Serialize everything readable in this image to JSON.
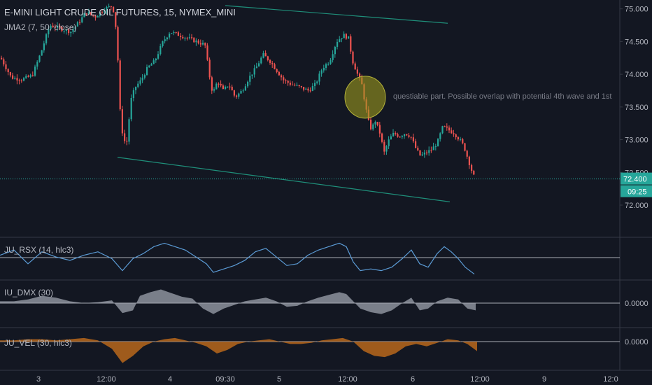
{
  "chart_data": {
    "type": "candlestick",
    "title": "E-MINI LIGHT CRUDE OIL FUTURES, 15, NYMEX_MINI",
    "overlay_label": "JMA2 (7, 50, close)",
    "y_ticks": [
      "75.000",
      "74.500",
      "74.000",
      "73.500",
      "73.000",
      "72.500",
      "72.000"
    ],
    "ylim": [
      71.85,
      75.05
    ],
    "last_price": "72.400",
    "last_price_value": 72.4,
    "countdown": "09:25",
    "x_ticks": [
      "3",
      "12:00",
      "4",
      "09:30",
      "5",
      "12:00",
      "6",
      "12:00",
      "9",
      "12:0"
    ],
    "close_path": [
      [
        0,
        74.25
      ],
      [
        15,
        73.95
      ],
      [
        30,
        73.92
      ],
      [
        45,
        73.98
      ],
      [
        58,
        74.35
      ],
      [
        70,
        74.75
      ],
      [
        85,
        74.7
      ],
      [
        100,
        74.65
      ],
      [
        112,
        74.8
      ],
      [
        122,
        74.95
      ],
      [
        135,
        74.88
      ],
      [
        148,
        75.0
      ],
      [
        160,
        75.05
      ],
      [
        166,
        74.6
      ],
      [
        170,
        73.5
      ],
      [
        175,
        73.0
      ],
      [
        180,
        72.95
      ],
      [
        186,
        73.6
      ],
      [
        192,
        73.8
      ],
      [
        200,
        73.9
      ],
      [
        210,
        74.1
      ],
      [
        220,
        74.2
      ],
      [
        232,
        74.5
      ],
      [
        242,
        74.65
      ],
      [
        255,
        74.6
      ],
      [
        268,
        74.55
      ],
      [
        280,
        74.5
      ],
      [
        292,
        74.45
      ],
      [
        298,
        74.0
      ],
      [
        303,
        73.7
      ],
      [
        310,
        73.9
      ],
      [
        318,
        73.75
      ],
      [
        326,
        73.85
      ],
      [
        335,
        73.65
      ],
      [
        345,
        73.75
      ],
      [
        355,
        73.95
      ],
      [
        365,
        74.1
      ],
      [
        375,
        74.3
      ],
      [
        385,
        74.2
      ],
      [
        395,
        74.05
      ],
      [
        405,
        73.9
      ],
      [
        415,
        73.85
      ],
      [
        428,
        73.8
      ],
      [
        440,
        73.75
      ],
      [
        450,
        73.85
      ],
      [
        460,
        74.1
      ],
      [
        470,
        74.2
      ],
      [
        480,
        74.5
      ],
      [
        490,
        74.6
      ],
      [
        497,
        74.55
      ],
      [
        503,
        74.2
      ],
      [
        510,
        74.0
      ],
      [
        516,
        73.85
      ],
      [
        520,
        73.6
      ],
      [
        525,
        73.3
      ],
      [
        530,
        73.15
      ],
      [
        535,
        73.3
      ],
      [
        542,
        73.1
      ],
      [
        548,
        72.8
      ],
      [
        555,
        73.0
      ],
      [
        562,
        73.1
      ],
      [
        570,
        73.05
      ],
      [
        578,
        73.1
      ],
      [
        586,
        73.05
      ],
      [
        594,
        72.85
      ],
      [
        600,
        72.75
      ],
      [
        608,
        72.8
      ],
      [
        616,
        72.85
      ],
      [
        624,
        72.95
      ],
      [
        632,
        73.2
      ],
      [
        640,
        73.15
      ],
      [
        648,
        73.1
      ],
      [
        656,
        73.0
      ],
      [
        662,
        72.9
      ],
      [
        668,
        72.7
      ],
      [
        674,
        72.5
      ],
      [
        678,
        72.4
      ]
    ],
    "trend_lines": [
      {
        "x1": 322,
        "y1": 75.05,
        "x2": 640,
        "y2": 74.78
      },
      {
        "x1": 168,
        "y1": 72.73,
        "x2": 643,
        "y2": 72.05
      }
    ],
    "annotation": "questiable part. Possible overlap with potential 4th wave and 1st",
    "highlight_circle": {
      "x": 522,
      "price": 73.65
    },
    "panels": [
      {
        "label": "JU_RSX (14, hlc3)",
        "levels": [],
        "y_tick": "",
        "series": [
          [
            0,
            0.6
          ],
          [
            20,
            0.75
          ],
          [
            40,
            0.35
          ],
          [
            60,
            0.7
          ],
          [
            80,
            0.55
          ],
          [
            100,
            0.45
          ],
          [
            120,
            0.6
          ],
          [
            140,
            0.7
          ],
          [
            160,
            0.5
          ],
          [
            175,
            0.15
          ],
          [
            190,
            0.5
          ],
          [
            205,
            0.65
          ],
          [
            220,
            0.85
          ],
          [
            235,
            0.95
          ],
          [
            250,
            0.85
          ],
          [
            265,
            0.75
          ],
          [
            280,
            0.55
          ],
          [
            295,
            0.35
          ],
          [
            305,
            0.1
          ],
          [
            320,
            0.2
          ],
          [
            335,
            0.3
          ],
          [
            350,
            0.45
          ],
          [
            365,
            0.7
          ],
          [
            380,
            0.8
          ],
          [
            395,
            0.55
          ],
          [
            410,
            0.3
          ],
          [
            425,
            0.35
          ],
          [
            440,
            0.6
          ],
          [
            455,
            0.75
          ],
          [
            470,
            0.85
          ],
          [
            485,
            0.95
          ],
          [
            495,
            0.85
          ],
          [
            505,
            0.4
          ],
          [
            515,
            0.15
          ],
          [
            530,
            0.2
          ],
          [
            545,
            0.15
          ],
          [
            560,
            0.25
          ],
          [
            575,
            0.5
          ],
          [
            588,
            0.75
          ],
          [
            600,
            0.35
          ],
          [
            612,
            0.25
          ],
          [
            625,
            0.65
          ],
          [
            635,
            0.85
          ],
          [
            645,
            0.7
          ],
          [
            655,
            0.5
          ],
          [
            665,
            0.25
          ],
          [
            678,
            0.05
          ]
        ]
      },
      {
        "label": "IU_DMX (30)",
        "levels": [],
        "y_tick": "0.0000",
        "series": [
          [
            0,
            0.1
          ],
          [
            20,
            0.1
          ],
          [
            40,
            0.2
          ],
          [
            60,
            0.4
          ],
          [
            80,
            0.3
          ],
          [
            100,
            0.1
          ],
          [
            120,
            0.0
          ],
          [
            140,
            0.05
          ],
          [
            160,
            0.15
          ],
          [
            175,
            -0.55
          ],
          [
            190,
            -0.4
          ],
          [
            200,
            0.4
          ],
          [
            215,
            0.6
          ],
          [
            230,
            0.75
          ],
          [
            245,
            0.55
          ],
          [
            260,
            0.35
          ],
          [
            275,
            0.25
          ],
          [
            290,
            -0.3
          ],
          [
            305,
            -0.6
          ],
          [
            320,
            -0.3
          ],
          [
            335,
            -0.1
          ],
          [
            350,
            0.1
          ],
          [
            365,
            0.2
          ],
          [
            380,
            0.3
          ],
          [
            395,
            0.1
          ],
          [
            410,
            -0.2
          ],
          [
            425,
            -0.15
          ],
          [
            440,
            0.1
          ],
          [
            455,
            0.3
          ],
          [
            470,
            0.45
          ],
          [
            485,
            0.6
          ],
          [
            495,
            0.5
          ],
          [
            505,
            0.1
          ],
          [
            515,
            -0.3
          ],
          [
            530,
            -0.5
          ],
          [
            545,
            -0.6
          ],
          [
            560,
            -0.4
          ],
          [
            575,
            0.0
          ],
          [
            588,
            0.3
          ],
          [
            600,
            -0.4
          ],
          [
            612,
            -0.3
          ],
          [
            625,
            0.1
          ],
          [
            640,
            0.3
          ],
          [
            655,
            0.2
          ],
          [
            668,
            -0.3
          ],
          [
            680,
            -0.4
          ]
        ]
      },
      {
        "label": "JU_VEL (30, hlc3)",
        "levels": [],
        "y_tick": "0.0000",
        "series": [
          [
            0,
            0.05
          ],
          [
            20,
            0.05
          ],
          [
            40,
            0.1
          ],
          [
            60,
            0.1
          ],
          [
            80,
            0.05
          ],
          [
            100,
            0.1
          ],
          [
            120,
            0.15
          ],
          [
            140,
            0.05
          ],
          [
            160,
            -0.3
          ],
          [
            175,
            -0.9
          ],
          [
            190,
            -0.6
          ],
          [
            205,
            -0.2
          ],
          [
            220,
            0.0
          ],
          [
            235,
            0.1
          ],
          [
            250,
            0.15
          ],
          [
            265,
            0.05
          ],
          [
            280,
            -0.05
          ],
          [
            295,
            -0.2
          ],
          [
            310,
            -0.5
          ],
          [
            325,
            -0.35
          ],
          [
            340,
            -0.1
          ],
          [
            355,
            0.0
          ],
          [
            370,
            0.05
          ],
          [
            385,
            0.1
          ],
          [
            400,
            0.0
          ],
          [
            415,
            -0.1
          ],
          [
            430,
            -0.1
          ],
          [
            445,
            -0.05
          ],
          [
            460,
            0.05
          ],
          [
            475,
            0.1
          ],
          [
            490,
            0.15
          ],
          [
            505,
            0.0
          ],
          [
            520,
            -0.4
          ],
          [
            535,
            -0.6
          ],
          [
            550,
            -0.65
          ],
          [
            565,
            -0.5
          ],
          [
            580,
            -0.2
          ],
          [
            595,
            -0.1
          ],
          [
            610,
            -0.2
          ],
          [
            625,
            -0.05
          ],
          [
            640,
            0.1
          ],
          [
            655,
            0.05
          ],
          [
            668,
            -0.1
          ],
          [
            682,
            -0.4
          ]
        ]
      }
    ],
    "colors": {
      "background": "#131722",
      "up": "#26a69a",
      "down": "#ef5350",
      "trend": "#1f8f7a",
      "rsx": "#5b9bd5",
      "dmx": "#9ea3ad",
      "vel": "#b8671b",
      "price_tag": "#26a69a",
      "circle": "#9c9a1e"
    }
  }
}
